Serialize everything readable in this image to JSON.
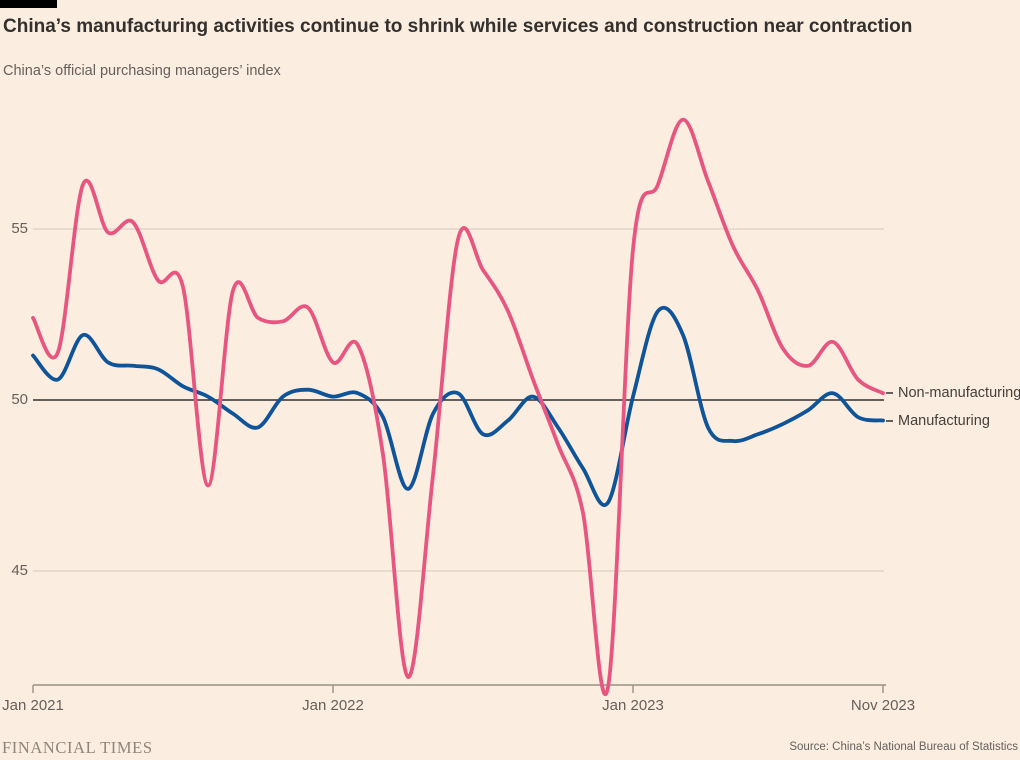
{
  "header": {
    "title": "China’s manufacturing activities continue to shrink while services and construction near contraction",
    "subtitle": "China’s official purchasing managers’ index"
  },
  "footer": {
    "brand": "FINANCIAL TIMES",
    "source": "Source: China’s National Bureau of Statistics"
  },
  "colors": {
    "background": "#FBEDE0",
    "non_manufacturing_line": "#E75681",
    "manufacturing_line": "#0F5499",
    "gridline": "#D5CABE",
    "baseline_50": "#33302E",
    "axis": "#989185",
    "text_dark": "#33302E",
    "text_muted": "#66605C"
  },
  "chart_data": {
    "type": "line",
    "title": "China’s manufacturing activities continue to shrink while services and construction near contraction",
    "subtitle": "China’s official purchasing managers’ index",
    "xlabel": "",
    "ylabel": "",
    "ylim": [
      41.7,
      58.6
    ],
    "y_ticks": [
      55,
      50,
      45
    ],
    "y_baseline": 50,
    "grid": "horizontal",
    "legend_position": "right-of-line-ends",
    "x": [
      "Jan 2021",
      "Feb 2021",
      "Mar 2021",
      "Apr 2021",
      "May 2021",
      "Jun 2021",
      "Jul 2021",
      "Aug 2021",
      "Sep 2021",
      "Oct 2021",
      "Nov 2021",
      "Dec 2021",
      "Jan 2022",
      "Feb 2022",
      "Mar 2022",
      "Apr 2022",
      "May 2022",
      "Jun 2022",
      "Jul 2022",
      "Aug 2022",
      "Sep 2022",
      "Oct 2022",
      "Nov 2022",
      "Dec 2022",
      "Jan 2023",
      "Feb 2023",
      "Mar 2023",
      "Apr 2023",
      "May 2023",
      "Jun 2023",
      "Jul 2023",
      "Aug 2023",
      "Sep 2023",
      "Oct 2023",
      "Nov 2023"
    ],
    "x_ticks": [
      {
        "index": 0,
        "label": "Jan 2021"
      },
      {
        "index": 12,
        "label": "Jan 2022"
      },
      {
        "index": 24,
        "label": "Jan 2023"
      },
      {
        "index": 34,
        "label": "Nov 2023"
      }
    ],
    "series": [
      {
        "name": "Non-manufacturing",
        "color": "#E75681",
        "values": [
          52.4,
          51.4,
          56.3,
          54.9,
          55.2,
          53.5,
          53.3,
          47.5,
          53.2,
          52.4,
          52.3,
          52.7,
          51.1,
          51.6,
          48.4,
          41.9,
          47.8,
          54.7,
          53.8,
          52.6,
          50.6,
          48.7,
          46.7,
          41.6,
          54.4,
          56.3,
          58.2,
          56.4,
          54.5,
          53.2,
          51.5,
          51.0,
          51.7,
          50.6,
          50.2
        ]
      },
      {
        "name": "Manufacturing",
        "color": "#0F5499",
        "values": [
          51.3,
          50.6,
          51.9,
          51.1,
          51.0,
          50.9,
          50.4,
          50.1,
          49.6,
          49.2,
          50.1,
          50.3,
          50.1,
          50.2,
          49.5,
          47.4,
          49.6,
          50.2,
          49.0,
          49.4,
          50.1,
          49.2,
          48.0,
          47.0,
          50.1,
          52.6,
          51.9,
          49.2,
          48.8,
          49.0,
          49.3,
          49.7,
          50.2,
          49.5,
          49.4
        ]
      }
    ]
  }
}
